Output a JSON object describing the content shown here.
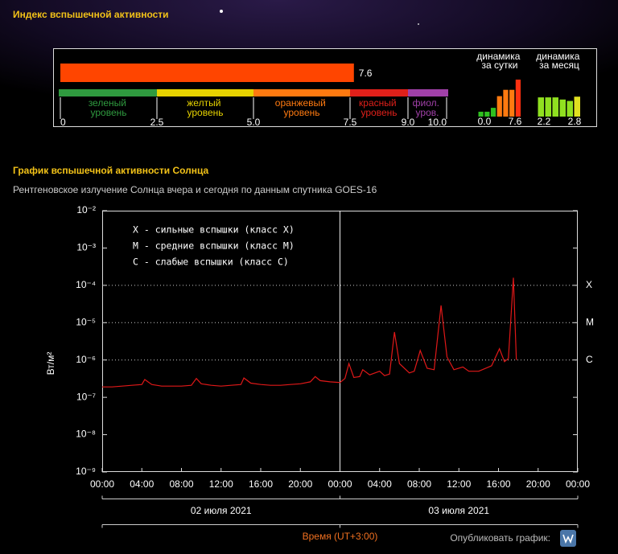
{
  "page": {
    "title": "Индекс вспышечной активности",
    "publish_label": "Опубликовать график:"
  },
  "chart_data": [
    {
      "type": "gauge",
      "values": [
        7.6
      ],
      "color": "#ff4500",
      "xlim": [
        0,
        10
      ],
      "xticks": [
        0,
        2.5,
        {
          "value": 5,
          "label": "5.0"
        },
        7.5,
        {
          "value": 9,
          "label": "9.0"
        },
        {
          "value": 10,
          "label": "10.0"
        }
      ],
      "zones": [
        {
          "name": "зеленый уровень",
          "color": "#2f9a3f"
        },
        {
          "name": "желтый уровень",
          "color": "#e6d200"
        },
        {
          "name": "оранжевый уровень",
          "color": "#ff7a10"
        },
        {
          "name": "красный уровень",
          "color": "#e0201a"
        },
        {
          "name": "фиол. уров.",
          "color": "#a040a8"
        }
      ]
    },
    {
      "type": "minibar",
      "title": "динамика за сутки",
      "values": [
        1.0,
        1.0,
        1.8,
        4.2,
        5.5,
        5.5,
        7.6
      ],
      "colors": [
        "#2fc020",
        "#2fc020",
        "#2fc020",
        "#ff7a10",
        "#ff7a10",
        "#ff7a10",
        "#ff3010"
      ],
      "ylim": [
        0,
        7.6
      ],
      "yticks": [
        {
          "value": 0,
          "label": "0.0"
        },
        7.6
      ]
    },
    {
      "type": "minibar",
      "title": "динамика за месяц",
      "values": [
        2.7,
        2.7,
        2.7,
        2.4,
        2.2,
        2.8
      ],
      "colors": [
        "#90e020",
        "#90e020",
        "#90e020",
        "#90e020",
        "#90e020",
        "#e0e020"
      ],
      "ylim": [
        0,
        5.2
      ],
      "yticks": [
        2.2,
        2.8
      ]
    },
    {
      "type": "line",
      "title": "График вспышечной активности Солнца",
      "subtitle": "Рентгеновское излучение Солнца вчера и сегодня по данным спутника GOES-16",
      "y_label": "Вт/м²",
      "x_label": "Время (UT+3:00)",
      "yscale": "log",
      "color": "#e01818",
      "ylim": [
        1e-09,
        0.01
      ],
      "yticks": [
        {
          "value": 1e-09,
          "label": "10⁻⁹"
        },
        {
          "value": 1e-08,
          "label": "10⁻⁸"
        },
        {
          "value": 1e-07,
          "label": "10⁻⁷"
        },
        {
          "value": 1e-06,
          "label": "10⁻⁶"
        },
        {
          "value": 1e-05,
          "label": "10⁻⁵"
        },
        {
          "value": 0.0001,
          "label": "10⁻⁴"
        },
        {
          "value": 0.001,
          "label": "10⁻³"
        },
        {
          "value": 0.01,
          "label": "10⁻²"
        }
      ],
      "xlim": [
        0,
        48
      ],
      "xticks": [
        {
          "value": 0,
          "label": "00:00"
        },
        {
          "value": 4,
          "label": "04:00"
        },
        {
          "value": 8,
          "label": "08:00"
        },
        {
          "value": 12,
          "label": "12:00"
        },
        {
          "value": 16,
          "label": "16:00"
        },
        {
          "value": 20,
          "label": "20:00"
        },
        {
          "value": 24,
          "label": "00:00"
        },
        {
          "value": 28,
          "label": "04:00"
        },
        {
          "value": 32,
          "label": "08:00"
        },
        {
          "value": 36,
          "label": "12:00"
        },
        {
          "value": 40,
          "label": "16:00"
        },
        {
          "value": 44,
          "label": "20:00"
        },
        {
          "value": 48,
          "label": "00:00"
        }
      ],
      "day_divider": 24,
      "dates": [
        "02 июля 2021",
        "03 июля 2021"
      ],
      "annotations": [
        "X - сильные вспышки (класс X)",
        "M - средние вспышки (класс M)",
        "C - слабые вспышки (класс C)"
      ],
      "class_lines": [
        {
          "label": "X",
          "value": 0.0001
        },
        {
          "label": "M",
          "value": 1e-05
        },
        {
          "label": "C",
          "value": 1e-06
        }
      ],
      "x": [
        0,
        1,
        2,
        3,
        4,
        4.3,
        5,
        6,
        7,
        8,
        9,
        9.5,
        10,
        11,
        12,
        13,
        14,
        14.3,
        15,
        16,
        17,
        18,
        19,
        20,
        21,
        21.5,
        22,
        23,
        24,
        24.5,
        24.9,
        25.4,
        26,
        26.3,
        27,
        28,
        28.5,
        29,
        29.5,
        30,
        31,
        31.5,
        32.1,
        32.8,
        33.5,
        34.2,
        34.8,
        35.5,
        36.4,
        37,
        38,
        39.3,
        40.1,
        40.6,
        41,
        41.5,
        41.8
      ],
      "values": [
        1.9e-07,
        1.9e-07,
        2e-07,
        2.1e-07,
        2.2e-07,
        3e-07,
        2.2e-07,
        2e-07,
        2e-07,
        2e-07,
        2.1e-07,
        3.2e-07,
        2.3e-07,
        2.1e-07,
        2e-07,
        2.1e-07,
        2.2e-07,
        3.3e-07,
        2.4e-07,
        2.2e-07,
        2.1e-07,
        2.1e-07,
        2.2e-07,
        2.3e-07,
        2.6e-07,
        3.6e-07,
        2.8e-07,
        2.6e-07,
        2.5e-07,
        3.2e-07,
        8e-07,
        3.4e-07,
        3.6e-07,
        5.5e-07,
        4e-07,
        5e-07,
        3.8e-07,
        4.2e-07,
        5.6e-06,
        8e-07,
        4.5e-07,
        5e-07,
        1.8e-06,
        6e-07,
        5.5e-07,
        2.9e-05,
        1.2e-06,
        5.5e-07,
        6.5e-07,
        5e-07,
        5e-07,
        7e-07,
        2e-06,
        9e-07,
        1.1e-06,
        0.00016,
        1e-06
      ]
    }
  ]
}
